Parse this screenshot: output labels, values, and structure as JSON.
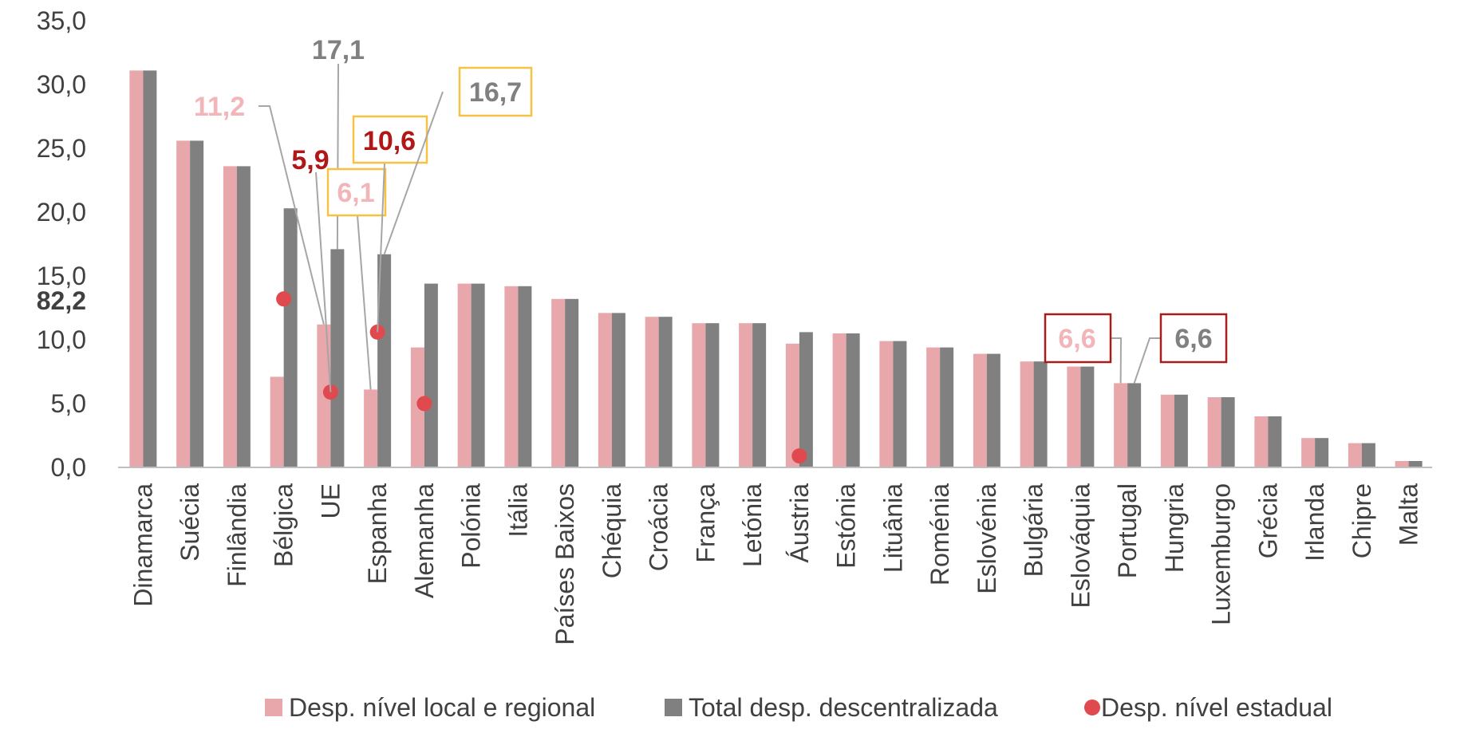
{
  "chart_data": {
    "type": "bar",
    "categories": [
      "Dinamarca",
      "Suécia",
      "Finlândia",
      "Bélgica",
      "UE",
      "Espanha",
      "Alemanha",
      "Polónia",
      "Itália",
      "Países Baixos",
      "Chéquia",
      "Croácia",
      "França",
      "Letónia",
      "Áustria",
      "Estónia",
      "Lituânia",
      "Roménia",
      "Eslovénia",
      "Bulgária",
      "Eslováquia",
      "Portugal",
      "Hungria",
      "Luxemburgo",
      "Grécia",
      "Irlanda",
      "Chipre",
      "Malta"
    ],
    "series": [
      {
        "name": "Desp. nível local e regional",
        "kind": "bar",
        "color": "#e8a7aa",
        "values": [
          31.1,
          25.6,
          23.6,
          7.1,
          11.2,
          6.1,
          9.4,
          14.4,
          14.2,
          13.2,
          12.1,
          11.8,
          11.3,
          11.3,
          9.7,
          10.5,
          9.9,
          9.4,
          8.9,
          8.3,
          7.9,
          6.6,
          5.7,
          5.5,
          4.0,
          2.3,
          1.9,
          0.5
        ]
      },
      {
        "name": "Total desp. descentralizada",
        "kind": "bar",
        "color": "#808080",
        "values": [
          31.1,
          25.6,
          23.6,
          20.3,
          17.1,
          16.7,
          14.4,
          14.4,
          14.2,
          13.2,
          12.1,
          11.8,
          11.3,
          11.3,
          10.6,
          10.5,
          9.9,
          9.4,
          8.9,
          8.3,
          7.9,
          6.6,
          5.7,
          5.5,
          4.0,
          2.3,
          1.9,
          0.5
        ]
      },
      {
        "name": "Desp. nível estadual",
        "kind": "point",
        "color": "#e04a4f",
        "values": [
          null,
          null,
          null,
          13.2,
          5.9,
          10.6,
          5.0,
          null,
          null,
          null,
          null,
          null,
          null,
          null,
          0.9,
          null,
          null,
          null,
          null,
          null,
          null,
          null,
          null,
          null,
          null,
          null,
          null,
          null
        ]
      }
    ],
    "y_ticks": [
      "0,0",
      "5,0",
      "10,0",
      "15,0",
      "20,0",
      "25,0",
      "30,0",
      "35,0"
    ],
    "ylim": [
      0,
      35
    ],
    "title": "",
    "xlabel": "",
    "ylabel": "",
    "outlier_label": "82,2",
    "annotations": [
      {
        "text": "11,2",
        "color": "#f2b6b9",
        "boxed": false,
        "category": "UE",
        "series": 0,
        "value": 11.2
      },
      {
        "text": "17,1",
        "color": "#808080",
        "boxed": false,
        "category": "UE",
        "series": 1,
        "value": 17.1
      },
      {
        "text": "5,9",
        "color": "#b01818",
        "boxed": false,
        "category": "UE",
        "series": 2,
        "value": 5.9
      },
      {
        "text": "6,1",
        "color": "#f2b6b9",
        "boxed": true,
        "box_color": "#f5c242",
        "category": "Espanha",
        "series": 0,
        "value": 6.1
      },
      {
        "text": "10,6",
        "color": "#b01818",
        "boxed": true,
        "box_color": "#f5c242",
        "category": "Espanha",
        "series": 2,
        "value": 10.6
      },
      {
        "text": "16,7",
        "color": "#808080",
        "boxed": true,
        "box_color": "#f5c242",
        "category": "Espanha",
        "series": 1,
        "value": 16.7
      },
      {
        "text": "6,6",
        "color": "#f2b6b9",
        "boxed": true,
        "box_color": "#a81c1c",
        "category": "Portugal",
        "series": 0,
        "value": 6.6
      },
      {
        "text": "6,6",
        "color": "#808080",
        "boxed": true,
        "box_color": "#a81c1c",
        "category": "Portugal",
        "series": 1,
        "value": 6.6
      }
    ],
    "legend": [
      "Desp. nível local e regional",
      "Total desp. descentralizada",
      "Desp. nível estadual"
    ],
    "legend_position": "bottom",
    "grid": false
  }
}
